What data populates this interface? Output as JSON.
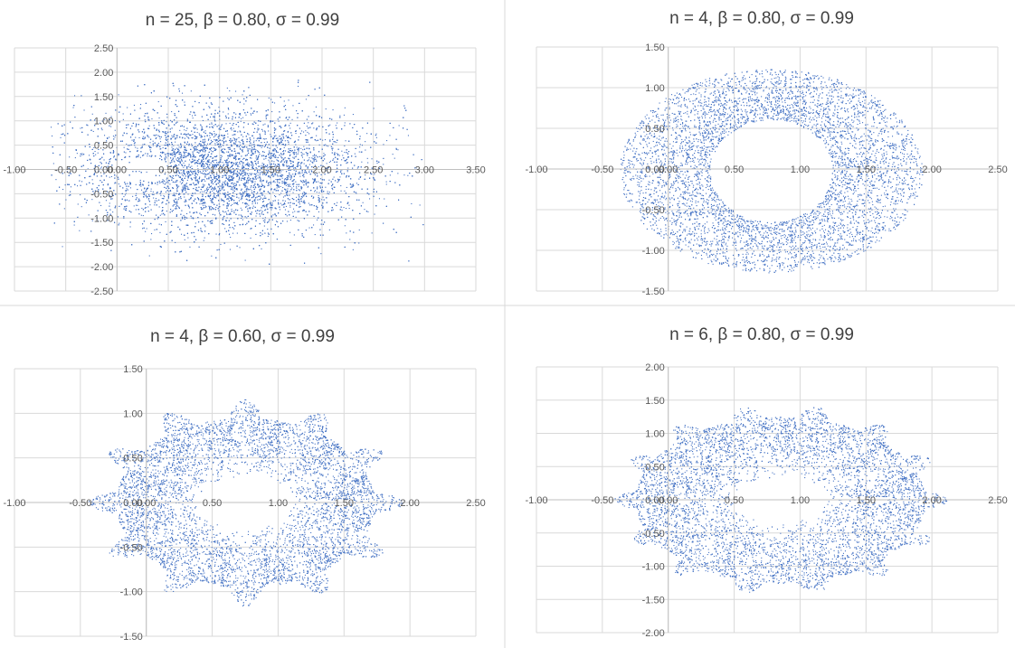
{
  "colors": {
    "points": "#4472c4",
    "grid": "#d9d9d9",
    "axis": "#bfbfbf",
    "text": "#404040"
  },
  "chart_data": [
    {
      "type": "scatter",
      "title": "n = 25, β = 0.80, σ = 0.99",
      "xlim": [
        -1.0,
        3.5
      ],
      "ylim": [
        -2.5,
        2.5
      ],
      "xticks": [
        -1.0,
        -0.5,
        0.0,
        0.5,
        1.0,
        1.5,
        2.0,
        2.5,
        3.0,
        3.5
      ],
      "yticks": [
        -2.5,
        -2.0,
        -1.5,
        -1.0,
        -0.5,
        0.0,
        0.5,
        1.0,
        1.5,
        2.0,
        2.5
      ],
      "xtick_labels": [
        "-1.00",
        "-0.50",
        "0.00",
        "0.50",
        "1.00",
        "1.50",
        "2.00",
        "2.50",
        "3.00",
        "3.50"
      ],
      "ytick_labels": [
        "-2.50",
        "-2.00",
        "-1.50",
        "-1.00",
        "-0.50",
        "0.00",
        "0.50",
        "1.00",
        "1.50",
        "2.00",
        "2.50"
      ],
      "grid": true,
      "series": [
        {
          "shape": "diffuse-ring",
          "center": [
            1.05,
            0.0
          ],
          "hole_center": [
            0.25,
            0.0
          ],
          "hole_radius": [
            0.3,
            0.25
          ],
          "extent_x": [
            -0.65,
            3.0
          ],
          "extent_y": [
            -2.0,
            1.9
          ],
          "points_shown": 9000
        }
      ]
    },
    {
      "type": "scatter",
      "title": "n = 4, β = 0.80, σ = 0.99",
      "xlim": [
        -1.0,
        2.5
      ],
      "ylim": [
        -1.5,
        1.5
      ],
      "xticks": [
        -1.0,
        -0.5,
        0.0,
        0.5,
        1.0,
        1.5,
        2.0,
        2.5
      ],
      "yticks": [
        -1.5,
        -1.0,
        -0.5,
        0.0,
        0.5,
        1.0,
        1.5
      ],
      "xtick_labels": [
        "-1.00",
        "-0.50",
        "0.00",
        "0.50",
        "1.00",
        "1.50",
        "2.00",
        "2.50"
      ],
      "ytick_labels": [
        "-1.50",
        "-1.00",
        "-0.50",
        "0.00",
        "0.50",
        "1.00",
        "1.50"
      ],
      "grid": true,
      "series": [
        {
          "shape": "annulus",
          "outer_center": [
            0.78,
            -0.02
          ],
          "outer_radius": [
            1.15,
            1.25
          ],
          "inner_center": [
            0.78,
            0.0
          ],
          "inner_radius": [
            0.46,
            0.63
          ],
          "points_shown": 7000
        }
      ]
    },
    {
      "type": "scatter",
      "title": "n = 4, β = 0.60, σ = 0.99",
      "xlim": [
        -1.0,
        2.5
      ],
      "ylim": [
        -1.5,
        1.5
      ],
      "xticks": [
        -1.0,
        -0.5,
        0.0,
        0.5,
        1.0,
        1.5,
        2.0,
        2.5
      ],
      "yticks": [
        -1.5,
        -1.0,
        -0.5,
        0.0,
        0.5,
        1.0,
        1.5
      ],
      "xtick_labels": [
        "-1.00",
        "-0.50",
        "0.00",
        "0.50",
        "1.00",
        "1.50",
        "2.00",
        "2.50"
      ],
      "ytick_labels": [
        "-1.50",
        "-1.00",
        "-0.50",
        "0.00",
        "0.50",
        "1.00",
        "1.50"
      ],
      "grid": true,
      "series": [
        {
          "shape": "lobed-ring",
          "center": [
            0.75,
            0.0
          ],
          "base_radius": [
            0.98,
            0.95
          ],
          "lobes": 12,
          "lobe_depth": 0.22,
          "hole_radius": [
            0.32,
            0.3
          ],
          "points_shown": 7000
        }
      ]
    },
    {
      "type": "scatter",
      "title": "n = 6, β = 0.80, σ = 0.99",
      "xlim": [
        -1.0,
        2.5
      ],
      "ylim": [
        -2.0,
        2.0
      ],
      "xticks": [
        -1.0,
        -0.5,
        0.0,
        0.5,
        1.0,
        1.5,
        2.0,
        2.5
      ],
      "yticks": [
        -2.0,
        -1.5,
        -1.0,
        -0.5,
        0.0,
        0.5,
        1.0,
        1.5,
        2.0
      ],
      "xtick_labels": [
        "-1.00",
        "-0.50",
        "0.00",
        "0.50",
        "1.00",
        "1.50",
        "2.00",
        "2.50"
      ],
      "ytick_labels": [
        "-2.00",
        "-1.50",
        "-1.00",
        "-0.50",
        "0.00",
        "0.50",
        "1.00",
        "1.50",
        "2.00"
      ],
      "grid": true,
      "series": [
        {
          "shape": "lobed-ring",
          "center": [
            0.85,
            0.0
          ],
          "base_radius": [
            1.1,
            1.25
          ],
          "lobes": 14,
          "lobe_depth": 0.15,
          "hole_radius": [
            0.3,
            0.35
          ],
          "points_shown": 7000
        }
      ]
    }
  ]
}
